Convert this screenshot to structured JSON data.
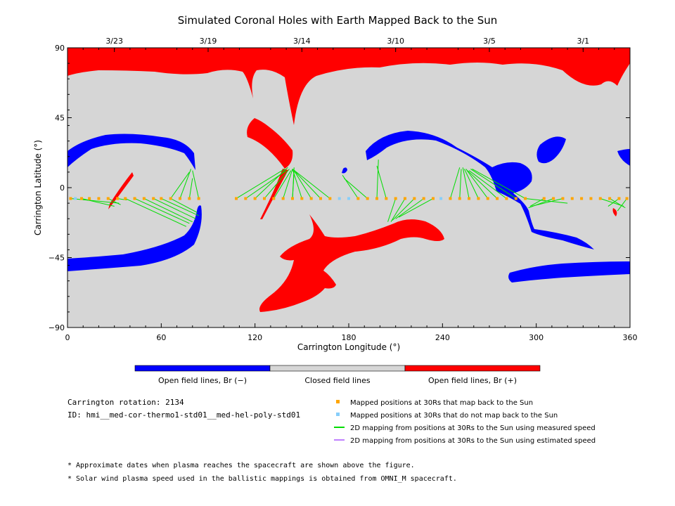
{
  "chart_data": {
    "type": "scatter",
    "title": "Simulated Coronal Holes with Earth Mapped Back to the Sun",
    "xlabel": "Carrington Longitude (°)",
    "ylabel": "Carrington Latitude (°)",
    "xlim": [
      0,
      360
    ],
    "ylim": [
      -90,
      90
    ],
    "x_ticks": [
      "0",
      "60",
      "120",
      "180",
      "240",
      "300",
      "360"
    ],
    "y_ticks": [
      "90",
      "45",
      "0",
      "−45",
      "−90"
    ],
    "top_dates": [
      {
        "label": "3/23",
        "lon": 30
      },
      {
        "label": "3/19",
        "lon": 90
      },
      {
        "label": "3/14",
        "lon": 150
      },
      {
        "label": "3/10",
        "lon": 210
      },
      {
        "label": "3/5",
        "lon": 270
      },
      {
        "label": "3/1",
        "lon": 330
      }
    ],
    "colorbar": [
      {
        "label": "Open field lines, Br (−)",
        "color": "#0000ff"
      },
      {
        "label": "Closed field lines",
        "color": "#d6d6d6"
      },
      {
        "label": "Open field lines, Br (+)",
        "color": "#ff0000"
      }
    ],
    "mapped_points": [
      {
        "lon": 2,
        "lat": -7
      },
      {
        "lon": 9,
        "lat": -7
      },
      {
        "lon": 14,
        "lat": -7
      },
      {
        "lon": 20,
        "lat": -7
      },
      {
        "lon": 26,
        "lat": -7
      },
      {
        "lon": 32,
        "lat": -7
      },
      {
        "lon": 37,
        "lat": -7
      },
      {
        "lon": 43,
        "lat": -7
      },
      {
        "lon": 49,
        "lat": -7
      },
      {
        "lon": 55,
        "lat": -7
      },
      {
        "lon": 60,
        "lat": -7
      },
      {
        "lon": 66,
        "lat": -7
      },
      {
        "lon": 72,
        "lat": -7
      },
      {
        "lon": 78,
        "lat": -7
      },
      {
        "lon": 84,
        "lat": -7
      },
      {
        "lon": 108,
        "lat": -7
      },
      {
        "lon": 114,
        "lat": -7
      },
      {
        "lon": 120,
        "lat": -7
      },
      {
        "lon": 126,
        "lat": -7
      },
      {
        "lon": 132,
        "lat": -7
      },
      {
        "lon": 138,
        "lat": -7
      },
      {
        "lon": 144,
        "lat": -7
      },
      {
        "lon": 150,
        "lat": -7
      },
      {
        "lon": 156,
        "lat": -7
      },
      {
        "lon": 162,
        "lat": -7
      },
      {
        "lon": 168,
        "lat": -7
      },
      {
        "lon": 186,
        "lat": -7
      },
      {
        "lon": 192,
        "lat": -7
      },
      {
        "lon": 198,
        "lat": -7
      },
      {
        "lon": 204,
        "lat": -7
      },
      {
        "lon": 210,
        "lat": -7
      },
      {
        "lon": 216,
        "lat": -7
      },
      {
        "lon": 222,
        "lat": -7
      },
      {
        "lon": 228,
        "lat": -7
      },
      {
        "lon": 234,
        "lat": -7
      },
      {
        "lon": 245,
        "lat": -7
      },
      {
        "lon": 251,
        "lat": -7
      },
      {
        "lon": 257,
        "lat": -7
      },
      {
        "lon": 263,
        "lat": -7
      },
      {
        "lon": 269,
        "lat": -7
      },
      {
        "lon": 275,
        "lat": -7
      },
      {
        "lon": 281,
        "lat": -7
      },
      {
        "lon": 287,
        "lat": -7
      },
      {
        "lon": 293,
        "lat": -7
      },
      {
        "lon": 305,
        "lat": -7
      },
      {
        "lon": 311,
        "lat": -7
      },
      {
        "lon": 317,
        "lat": -7
      },
      {
        "lon": 323,
        "lat": -7
      },
      {
        "lon": 329,
        "lat": -7
      },
      {
        "lon": 335,
        "lat": -7
      },
      {
        "lon": 341,
        "lat": -7
      },
      {
        "lon": 347,
        "lat": -7
      },
      {
        "lon": 353,
        "lat": -7
      },
      {
        "lon": 358,
        "lat": -7
      }
    ],
    "unmapped_points": [
      {
        "lon": 5,
        "lat": -7
      },
      {
        "lon": 174,
        "lat": -7
      },
      {
        "lon": 180,
        "lat": -7
      },
      {
        "lon": 239,
        "lat": -7
      }
    ],
    "mapping_lines": [
      {
        "from": [
          2,
          -7
        ],
        "to": [
          33,
          -10
        ]
      },
      {
        "from": [
          9,
          -7
        ],
        "to": [
          30,
          -12
        ]
      },
      {
        "from": [
          26,
          -7
        ],
        "to": [
          34,
          -11
        ]
      },
      {
        "from": [
          32,
          -7
        ],
        "to": [
          38,
          -8
        ]
      },
      {
        "from": [
          37,
          -7
        ],
        "to": [
          76,
          -25
        ]
      },
      {
        "from": [
          43,
          -7
        ],
        "to": [
          78,
          -23
        ]
      },
      {
        "from": [
          49,
          -7
        ],
        "to": [
          80,
          -22
        ]
      },
      {
        "from": [
          55,
          -7
        ],
        "to": [
          82,
          -20
        ]
      },
      {
        "from": [
          60,
          -7
        ],
        "to": [
          84,
          -18
        ]
      },
      {
        "from": [
          66,
          -7
        ],
        "to": [
          83,
          -16
        ]
      },
      {
        "from": [
          66,
          -7
        ],
        "to": [
          78,
          10
        ]
      },
      {
        "from": [
          72,
          -7
        ],
        "to": [
          79,
          12
        ]
      },
      {
        "from": [
          78,
          -7
        ],
        "to": [
          80,
          6
        ]
      },
      {
        "from": [
          84,
          -7
        ],
        "to": [
          80,
          11
        ]
      },
      {
        "from": [
          108,
          -7
        ],
        "to": [
          139,
          12
        ]
      },
      {
        "from": [
          114,
          -7
        ],
        "to": [
          140,
          11
        ]
      },
      {
        "from": [
          120,
          -7
        ],
        "to": [
          141,
          13
        ]
      },
      {
        "from": [
          126,
          -7
        ],
        "to": [
          142,
          12
        ]
      },
      {
        "from": [
          132,
          -7
        ],
        "to": [
          143,
          11
        ]
      },
      {
        "from": [
          138,
          -7
        ],
        "to": [
          144,
          12
        ]
      },
      {
        "from": [
          144,
          -7
        ],
        "to": [
          145,
          10
        ]
      },
      {
        "from": [
          150,
          -7
        ],
        "to": [
          144,
          12
        ]
      },
      {
        "from": [
          156,
          -7
        ],
        "to": [
          145,
          11
        ]
      },
      {
        "from": [
          162,
          -7
        ],
        "to": [
          146,
          10
        ]
      },
      {
        "from": [
          168,
          -7
        ],
        "to": [
          144,
          12
        ]
      },
      {
        "from": [
          144,
          -7
        ],
        "to": [
          145,
          13
        ]
      },
      {
        "from": [
          186,
          -7
        ],
        "to": [
          176,
          8
        ]
      },
      {
        "from": [
          192,
          -7
        ],
        "to": [
          177,
          6
        ]
      },
      {
        "from": [
          198,
          -7
        ],
        "to": [
          199,
          18
        ]
      },
      {
        "from": [
          204,
          -7
        ],
        "to": [
          198,
          14
        ]
      },
      {
        "from": [
          210,
          -7
        ],
        "to": [
          205,
          -22
        ]
      },
      {
        "from": [
          216,
          -7
        ],
        "to": [
          207,
          -22
        ]
      },
      {
        "from": [
          222,
          -7
        ],
        "to": [
          208,
          -21
        ]
      },
      {
        "from": [
          228,
          -7
        ],
        "to": [
          210,
          -20
        ]
      },
      {
        "from": [
          234,
          -7
        ],
        "to": [
          212,
          -19
        ]
      },
      {
        "from": [
          245,
          -7
        ],
        "to": [
          251,
          13
        ]
      },
      {
        "from": [
          251,
          -7
        ],
        "to": [
          252,
          12
        ]
      },
      {
        "from": [
          257,
          -7
        ],
        "to": [
          253,
          13
        ]
      },
      {
        "from": [
          263,
          -7
        ],
        "to": [
          254,
          12
        ]
      },
      {
        "from": [
          269,
          -7
        ],
        "to": [
          255,
          12
        ]
      },
      {
        "from": [
          275,
          -7
        ],
        "to": [
          256,
          11
        ]
      },
      {
        "from": [
          281,
          -7
        ],
        "to": [
          257,
          11
        ]
      },
      {
        "from": [
          287,
          -7
        ],
        "to": [
          258,
          12
        ]
      },
      {
        "from": [
          293,
          -7
        ],
        "to": [
          259,
          12
        ]
      },
      {
        "from": [
          293,
          -7
        ],
        "to": [
          320,
          -10
        ]
      },
      {
        "from": [
          305,
          -7
        ],
        "to": [
          296,
          -12
        ]
      },
      {
        "from": [
          311,
          -7
        ],
        "to": [
          295,
          -13
        ]
      },
      {
        "from": [
          317,
          -7
        ],
        "to": [
          297,
          -12
        ]
      },
      {
        "from": [
          341,
          -7
        ],
        "to": [
          356,
          -12
        ]
      },
      {
        "from": [
          347,
          -7
        ],
        "to": [
          357,
          -13
        ]
      },
      {
        "from": [
          353,
          -7
        ],
        "to": [
          346,
          -12
        ]
      },
      {
        "from": [
          358,
          -7
        ],
        "to": [
          352,
          -15
        ]
      }
    ]
  },
  "info": {
    "rotation": "Carrington rotation: 2134",
    "id": "ID: hmi__med-cor-thermo1-std01__med-hel-poly-std01"
  },
  "legend": [
    {
      "label": "Mapped positions at 30Rs that map back to the Sun",
      "kind": "square",
      "color": "#ffa500"
    },
    {
      "label": "Mapped positions at 30Rs that do not map back to the Sun",
      "kind": "square",
      "color": "#87cefa"
    },
    {
      "label": "2D mapping from positions at 30Rs to the Sun using measured speed",
      "kind": "line",
      "color": "#00dd00"
    },
    {
      "label": "2D mapping from positions at 30Rs to the Sun using estimated speed",
      "kind": "line",
      "color": "#c080ff"
    }
  ],
  "notes": [
    "* Approximate dates when plasma reaches the spacecraft are shown above the figure.",
    "* Solar wind plasma speed used in the ballistic mappings is obtained from OMNI_M spacecraft."
  ]
}
